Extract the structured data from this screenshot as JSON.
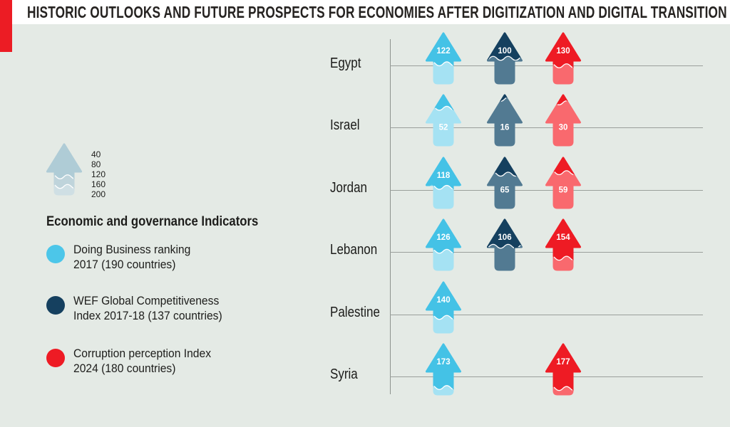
{
  "header": {
    "title": "HISTORIC OUTLOOKS AND FUTURE PROSPECTS FOR ECONOMIES AFTER DIGITIZATION AND DIGITAL TRANSITION",
    "accent_color": "#ec1c24"
  },
  "legend": {
    "heading": "Economic and governance Indicators",
    "scale_labels": [
      "40",
      "80",
      "120",
      "160",
      "200"
    ],
    "scale_arrow_colors": {
      "top": "#afccd6",
      "mid": "#bfd4db",
      "bottom": "#cfdfe4"
    },
    "items": [
      {
        "line1": "Doing Business ranking",
        "line2": "2017 (190 countries)",
        "color": "#4cc6e9"
      },
      {
        "line1": "WEF Global Competitiveness",
        "line2": "Index 2017-18 (137 countries)",
        "color": "#15405f"
      },
      {
        "line1": "Corruption perception Index",
        "line2": "2024 (180 countries)",
        "color": "#ee1b24"
      }
    ]
  },
  "chart_data": {
    "type": "pictogram-arrow",
    "title": "HISTORIC OUTLOOKS AND FUTURE PROSPECTS FOR ECONOMIES AFTER DIGITIZATION AND DIGITAL TRANSITION",
    "categories": [
      "Egypt",
      "Israel",
      "Jordan",
      "Lebanon",
      "Palestine",
      "Syria"
    ],
    "series": [
      {
        "name": "Doing Business ranking 2017 (190 countries)",
        "color": "#44c2e6",
        "light_color": "#a5e2f3",
        "values": [
          122,
          52,
          118,
          126,
          140,
          173
        ]
      },
      {
        "name": "WEF Global Competitiveness Index 2017-18 (137 countries)",
        "color": "#15405f",
        "light_color": "#527a92",
        "values": [
          100,
          16,
          65,
          106,
          null,
          null
        ]
      },
      {
        "name": "Corruption perception Index 2024 (180 countries)",
        "color": "#ee1b24",
        "light_color": "#f9696e",
        "values": [
          130,
          30,
          59,
          154,
          null,
          177
        ]
      }
    ],
    "scale": {
      "min": 0,
      "max": 200,
      "ticks": [
        40,
        80,
        120,
        160,
        200
      ]
    },
    "legend_position": "left",
    "grid": "horizontal-row-lines",
    "value_labels": "on-arrow"
  }
}
